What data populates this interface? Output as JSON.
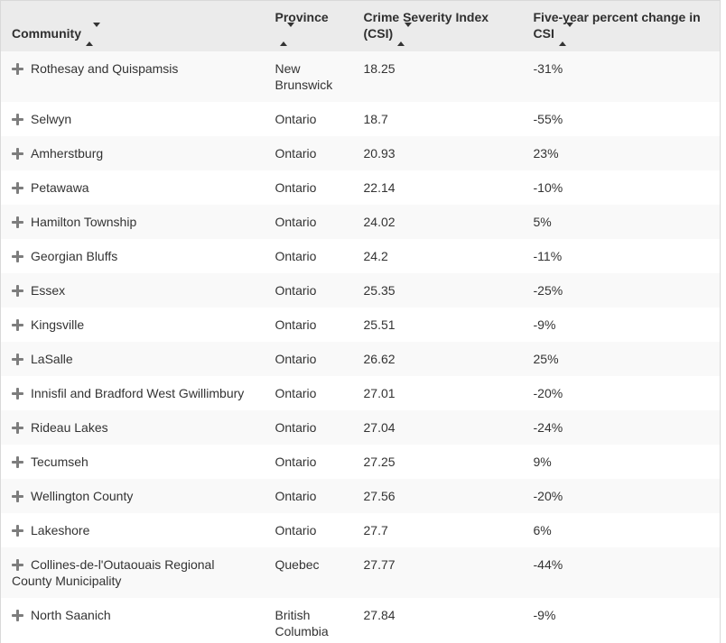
{
  "table": {
    "columns": [
      {
        "label": "Community",
        "sortable": true
      },
      {
        "label": "Province",
        "sortable": true
      },
      {
        "label": "Crime Severity Index (CSI)",
        "sortable": true
      },
      {
        "label": "Five-year percent change in CSI",
        "sortable": true
      }
    ],
    "rows": [
      {
        "community": "Rothesay and Quispamsis",
        "province": "New Brunswick",
        "csi": "18.25",
        "change": "-31%"
      },
      {
        "community": "Selwyn",
        "province": "Ontario",
        "csi": "18.7",
        "change": "-55%"
      },
      {
        "community": "Amherstburg",
        "province": "Ontario",
        "csi": "20.93",
        "change": "23%"
      },
      {
        "community": "Petawawa",
        "province": "Ontario",
        "csi": "22.14",
        "change": "-10%"
      },
      {
        "community": "Hamilton Township",
        "province": "Ontario",
        "csi": "24.02",
        "change": "5%"
      },
      {
        "community": "Georgian Bluffs",
        "province": "Ontario",
        "csi": "24.2",
        "change": "-11%"
      },
      {
        "community": "Essex",
        "province": "Ontario",
        "csi": "25.35",
        "change": "-25%"
      },
      {
        "community": "Kingsville",
        "province": "Ontario",
        "csi": "25.51",
        "change": "-9%"
      },
      {
        "community": "LaSalle",
        "province": "Ontario",
        "csi": "26.62",
        "change": "25%"
      },
      {
        "community": "Innisfil and Bradford West Gwillimbury",
        "province": "Ontario",
        "csi": "27.01",
        "change": "-20%"
      },
      {
        "community": "Rideau Lakes",
        "province": "Ontario",
        "csi": "27.04",
        "change": "-24%"
      },
      {
        "community": "Tecumseh",
        "province": "Ontario",
        "csi": "27.25",
        "change": "9%"
      },
      {
        "community": "Wellington County",
        "province": "Ontario",
        "csi": "27.56",
        "change": "-20%"
      },
      {
        "community": "Lakeshore",
        "province": "Ontario",
        "csi": "27.7",
        "change": "6%"
      },
      {
        "community": "Collines-de-l'Outaouais Regional County Municipality",
        "province": "Quebec",
        "csi": "27.77",
        "change": "-44%"
      },
      {
        "community": "North Saanich",
        "province": "British Columbia",
        "csi": "27.84",
        "change": "-9%"
      }
    ]
  },
  "icons": {
    "row_expand": "plus-icon",
    "column_sort": "sort-arrows-icon"
  },
  "colors": {
    "header_bg": "#ebebeb",
    "stripe_row_bg": "#f9f9f9",
    "row_bg": "#ffffff",
    "border": "#d9d9d9",
    "text": "#333333",
    "plus_icon": "#7d7d7d"
  }
}
